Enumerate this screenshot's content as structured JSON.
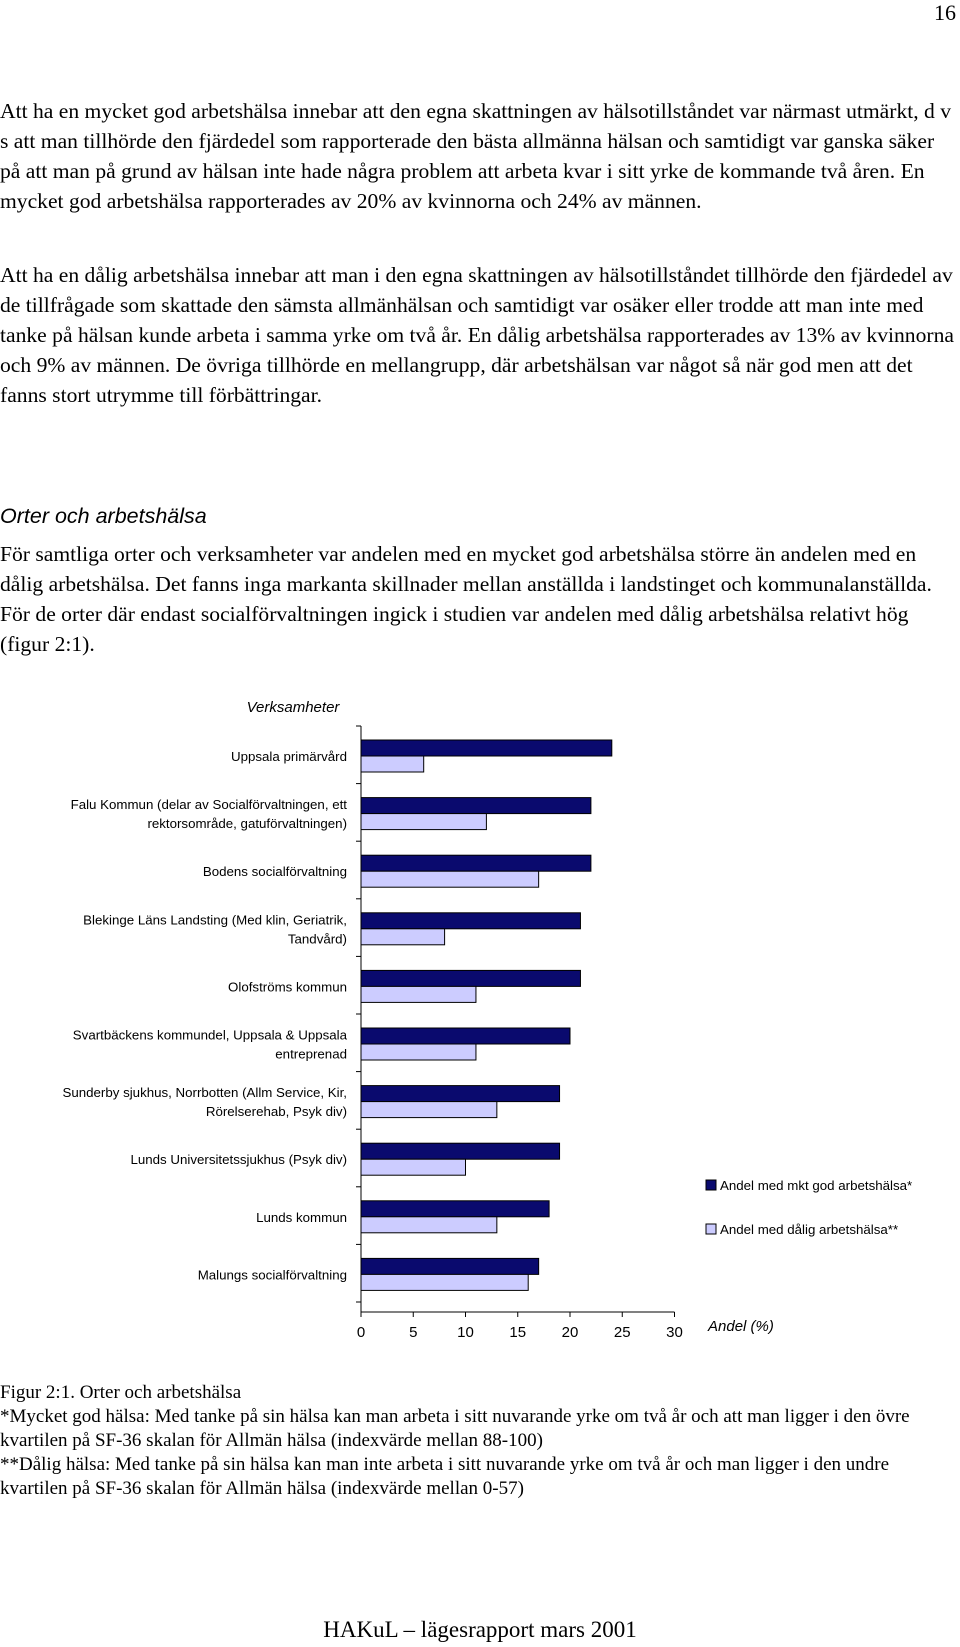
{
  "page": {
    "number": "16",
    "paragraphs": [
      "Att ha en mycket god arbetshälsa innebar att den egna skattningen av hälsotillståndet var närmast utmärkt, d v s  att man tillhörde den fjärdedel som rapporterade den bästa allmänna hälsan och samtidigt var ganska säker på att man på grund av hälsan inte hade några problem att arbeta kvar i sitt yrke de kommande två åren. En mycket god arbetshälsa rapporterades av 20% av kvinnorna och 24% av männen.",
      "Att ha en dålig arbetshälsa innebar att man i den egna skattningen av hälsotillståndet tillhörde den fjärdedel av de tillfrågade som skattade den sämsta allmänhälsan och samtidigt var osäker eller trodde att man inte med tanke på hälsan kunde arbeta i samma yrke om två år. En dålig arbetshälsa rapporterades av 13% av kvinnorna och 9% av männen. De övriga tillhörde en mellangrupp, där arbetshälsan var något så när god men att det fanns stort utrymme till förbättringar.",
      "För samtliga orter och verksamheter var andelen med en mycket god arbetshälsa större än andelen med en dålig arbetshälsa. Det fanns inga markanta skillnader mellan anställda i landstinget och kommunalanställda. För de orter där endast socialförvaltningen ingick i studien var andelen med dålig arbetshälsa relativt hög (figur 2:1)."
    ],
    "section_heading": "Orter och arbetshälsa",
    "caption": "Figur 2:1. Orter och arbetshälsa",
    "footnotes": [
      "*Mycket god hälsa: Med tanke på  sin  hälsa kan man arbeta i sitt nuvarande yrke om två år och att man ligger i den övre kvartilen på SF-36 skalan för Allmän hälsa (indexvärde mellan 88-100)",
      "**Dålig hälsa: Med tanke på  sin  hälsa kan man inte arbeta i sitt nuvarande yrke om två år och man ligger i den undre kvartilen på SF-36 skalan för Allmän hälsa (indexvärde mellan 0-57)"
    ],
    "footer": "HAKuL – lägesrapport mars 2001"
  },
  "chart_data": {
    "type": "bar",
    "orientation": "horizontal",
    "title": "Verksamheter",
    "xlabel": "Andel (%)",
    "xlim": [
      0,
      30
    ],
    "xticks": [
      "0",
      "5",
      "10",
      "15",
      "20",
      "25",
      "30"
    ],
    "legend_position": "right",
    "grid": false,
    "categories": [
      [
        "Uppsala primärvård"
      ],
      [
        "Falu Kommun (delar av Socialförvaltningen, ett",
        "rektorsområde, gatuförvaltningen)"
      ],
      [
        "Bodens socialförvaltning"
      ],
      [
        "Blekinge Läns Landsting (Med klin, Geriatrik,",
        "Tandvård)"
      ],
      [
        "Olofströms kommun"
      ],
      [
        "Svartbäckens kommundel, Uppsala & Uppsala",
        "entreprenad"
      ],
      [
        "Sunderby sjukhus, Norrbotten (Allm Service, Kir,",
        "Rörelserehab, Psyk div)"
      ],
      [
        "Lunds Universitetssjukhus (Psyk div)"
      ],
      [
        "Lunds kommun"
      ],
      [
        "Malungs socialförvaltning"
      ]
    ],
    "series": [
      {
        "name": "Andel med mkt god arbetshälsa*",
        "color": "#0a0a6e",
        "values": [
          24,
          22,
          22,
          21,
          21,
          20,
          19,
          19,
          18,
          17
        ]
      },
      {
        "name": "Andel med dålig arbetshälsa**",
        "color": "#ccccff",
        "values": [
          6,
          12,
          17,
          8,
          11,
          11,
          13,
          10,
          13,
          16
        ]
      }
    ]
  }
}
